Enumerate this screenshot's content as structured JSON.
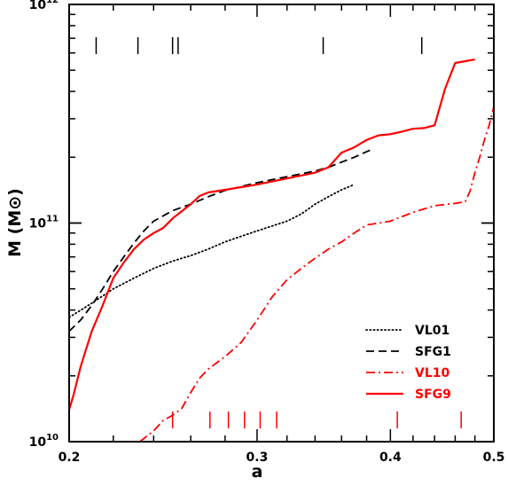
{
  "chart_data": {
    "type": "line",
    "xlabel": "a",
    "ylabel": "M (M⊙)",
    "xscale": "log",
    "yscale": "log",
    "xlim": [
      0.2,
      0.5
    ],
    "ylim": [
      10000000000.0,
      1000000000000.0
    ],
    "x_tick_labels": [
      {
        "value": 0.2,
        "label": "0.2"
      },
      {
        "value": 0.3,
        "label": "0.3"
      },
      {
        "value": 0.4,
        "label": "0.4"
      },
      {
        "value": 0.5,
        "label": "0.5"
      }
    ],
    "y_tick_labels": [
      {
        "value": 10000000000.0,
        "base": "10",
        "exp": "10"
      },
      {
        "value": 100000000000.0,
        "base": "10",
        "exp": "11"
      },
      {
        "value": 1000000000000.0,
        "base": "10",
        "exp": "12"
      }
    ],
    "legend_position": "bottom-right",
    "series": [
      {
        "name": "VL01",
        "color": "#000000",
        "style": "dotted",
        "points": [
          [
            0.2,
            37000000000.0
          ],
          [
            0.21,
            43000000000.0
          ],
          [
            0.22,
            50000000000.0
          ],
          [
            0.23,
            56000000000.0
          ],
          [
            0.24,
            62000000000.0
          ],
          [
            0.25,
            67000000000.0
          ],
          [
            0.26,
            71000000000.0
          ],
          [
            0.27,
            76000000000.0
          ],
          [
            0.28,
            82000000000.0
          ],
          [
            0.29,
            87000000000.0
          ],
          [
            0.3,
            92000000000.0
          ],
          [
            0.31,
            97000000000.0
          ],
          [
            0.32,
            102000000000.0
          ],
          [
            0.33,
            110000000000.0
          ],
          [
            0.34,
            122000000000.0
          ],
          [
            0.35,
            132000000000.0
          ],
          [
            0.36,
            142000000000.0
          ],
          [
            0.37,
            150000000000.0
          ]
        ]
      },
      {
        "name": "SFG1",
        "color": "#000000",
        "style": "dashed",
        "points": [
          [
            0.2,
            32000000000.0
          ],
          [
            0.205,
            36000000000.0
          ],
          [
            0.21,
            42000000000.0
          ],
          [
            0.215,
            50000000000.0
          ],
          [
            0.22,
            60000000000.0
          ],
          [
            0.225,
            70000000000.0
          ],
          [
            0.23,
            81000000000.0
          ],
          [
            0.235,
            92000000000.0
          ],
          [
            0.24,
            102000000000.0
          ],
          [
            0.25,
            114000000000.0
          ],
          [
            0.26,
            122000000000.0
          ],
          [
            0.27,
            132000000000.0
          ],
          [
            0.28,
            141000000000.0
          ],
          [
            0.29,
            147000000000.0
          ],
          [
            0.3,
            153000000000.0
          ],
          [
            0.31,
            158000000000.0
          ],
          [
            0.32,
            163000000000.0
          ],
          [
            0.33,
            168000000000.0
          ],
          [
            0.34,
            173000000000.0
          ],
          [
            0.35,
            180000000000.0
          ],
          [
            0.36,
            190000000000.0
          ],
          [
            0.37,
            200000000000.0
          ],
          [
            0.38,
            212000000000.0
          ],
          [
            0.385,
            218000000000.0
          ]
        ]
      },
      {
        "name": "VL10",
        "color": "#ff0000",
        "style": "dashdot",
        "points": [
          [
            0.233,
            10000000000.0
          ],
          [
            0.24,
            11200000000.0
          ],
          [
            0.245,
            12500000000.0
          ],
          [
            0.25,
            13200000000.0
          ],
          [
            0.255,
            14200000000.0
          ],
          [
            0.26,
            16800000000.0
          ],
          [
            0.265,
            19500000000.0
          ],
          [
            0.27,
            21500000000.0
          ],
          [
            0.28,
            24500000000.0
          ],
          [
            0.29,
            28500000000.0
          ],
          [
            0.3,
            36000000000.0
          ],
          [
            0.31,
            46000000000.0
          ],
          [
            0.32,
            55000000000.0
          ],
          [
            0.33,
            62000000000.0
          ],
          [
            0.34,
            69000000000.0
          ],
          [
            0.35,
            76000000000.0
          ],
          [
            0.36,
            82000000000.0
          ],
          [
            0.37,
            90000000000.0
          ],
          [
            0.38,
            98000000000.0
          ],
          [
            0.4,
            102000000000.0
          ],
          [
            0.42,
            112000000000.0
          ],
          [
            0.44,
            120000000000.0
          ],
          [
            0.46,
            123000000000.0
          ],
          [
            0.47,
            125000000000.0
          ],
          [
            0.475,
            140000000000.0
          ],
          [
            0.48,
            170000000000.0
          ],
          [
            0.485,
            200000000000.0
          ],
          [
            0.49,
            240000000000.0
          ],
          [
            0.495,
            280000000000.0
          ],
          [
            0.5,
            340000000000.0
          ]
        ]
      },
      {
        "name": "SFG9",
        "color": "#ff0000",
        "style": "solid",
        "points": [
          [
            0.2,
            14000000000.0
          ],
          [
            0.202,
            16500000000.0
          ],
          [
            0.205,
            22000000000.0
          ],
          [
            0.21,
            32000000000.0
          ],
          [
            0.215,
            42000000000.0
          ],
          [
            0.22,
            56000000000.0
          ],
          [
            0.225,
            66000000000.0
          ],
          [
            0.23,
            76000000000.0
          ],
          [
            0.235,
            84000000000.0
          ],
          [
            0.24,
            90000000000.0
          ],
          [
            0.245,
            95000000000.0
          ],
          [
            0.25,
            105000000000.0
          ],
          [
            0.26,
            122000000000.0
          ],
          [
            0.265,
            133000000000.0
          ],
          [
            0.27,
            138000000000.0
          ],
          [
            0.28,
            142000000000.0
          ],
          [
            0.29,
            146000000000.0
          ],
          [
            0.3,
            150000000000.0
          ],
          [
            0.31,
            155000000000.0
          ],
          [
            0.32,
            160000000000.0
          ],
          [
            0.33,
            165000000000.0
          ],
          [
            0.34,
            170000000000.0
          ],
          [
            0.35,
            180000000000.0
          ],
          [
            0.36,
            210000000000.0
          ],
          [
            0.37,
            222000000000.0
          ],
          [
            0.38,
            240000000000.0
          ],
          [
            0.39,
            252000000000.0
          ],
          [
            0.4,
            255000000000.0
          ],
          [
            0.41,
            262000000000.0
          ],
          [
            0.42,
            270000000000.0
          ],
          [
            0.43,
            272000000000.0
          ],
          [
            0.44,
            280000000000.0
          ],
          [
            0.45,
            410000000000.0
          ],
          [
            0.46,
            540000000000.0
          ],
          [
            0.47,
            550000000000.0
          ],
          [
            0.48,
            560000000000.0
          ]
        ]
      }
    ],
    "tick_markers": [
      {
        "row": "top",
        "color": "#000000",
        "x": [
          0.212,
          0.232,
          0.25,
          0.253,
          0.346,
          0.428
        ]
      },
      {
        "row": "bottom",
        "color": "#ff0000",
        "x": [
          0.25,
          0.271,
          0.282,
          0.292,
          0.302,
          0.313,
          0.406,
          0.466
        ]
      }
    ]
  }
}
